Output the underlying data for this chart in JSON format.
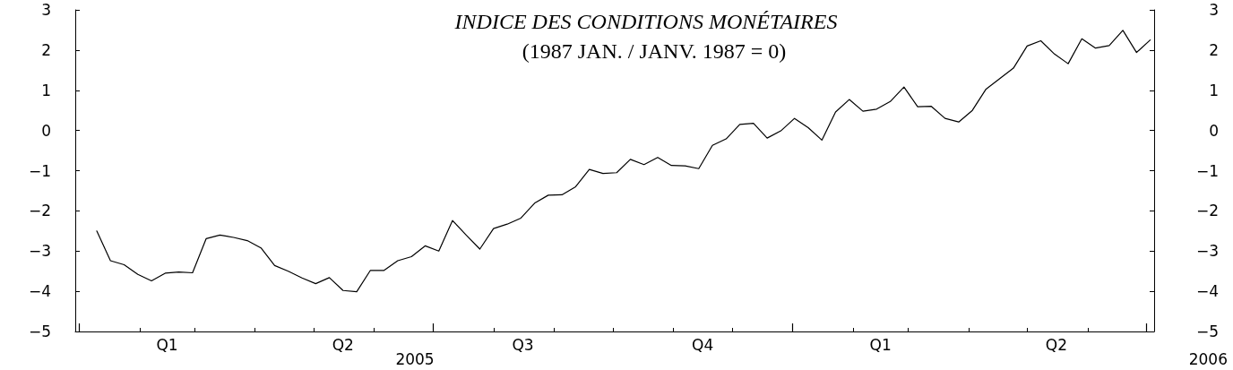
{
  "chart_data": {
    "type": "line",
    "title": "INDICE DES CONDITIONS MONÉTAIRES",
    "subtitle": "(1987 JAN. / JANV. 1987 = 0)",
    "x": [
      "2005-01-10",
      "2005-01-17",
      "2005-01-24",
      "2005-01-31",
      "2005-02-07",
      "2005-02-14",
      "2005-02-21",
      "2005-02-28",
      "2005-03-07",
      "2005-03-14",
      "2005-03-21",
      "2005-03-28",
      "2005-04-04",
      "2005-04-11",
      "2005-04-18",
      "2005-04-25",
      "2005-05-02",
      "2005-05-09",
      "2005-05-16",
      "2005-05-23",
      "2005-05-30",
      "2005-06-06",
      "2005-06-13",
      "2005-06-20",
      "2005-06-27",
      "2005-07-04",
      "2005-07-11",
      "2005-07-18",
      "2005-07-25",
      "2005-08-01",
      "2005-08-08",
      "2005-08-15",
      "2005-08-22",
      "2005-08-29",
      "2005-09-05",
      "2005-09-12",
      "2005-09-19",
      "2005-09-26",
      "2005-10-03",
      "2005-10-10",
      "2005-10-17",
      "2005-10-24",
      "2005-10-31",
      "2005-11-07",
      "2005-11-14",
      "2005-11-21",
      "2005-11-28",
      "2005-12-05",
      "2005-12-12",
      "2005-12-19",
      "2005-12-26",
      "2006-01-02",
      "2006-01-09",
      "2006-01-16",
      "2006-01-23",
      "2006-01-30",
      "2006-02-06",
      "2006-02-13",
      "2006-02-20",
      "2006-02-27",
      "2006-03-06",
      "2006-03-13",
      "2006-03-20",
      "2006-03-27",
      "2006-04-03",
      "2006-04-10",
      "2006-04-17",
      "2006-04-24",
      "2006-05-01",
      "2006-05-08",
      "2006-05-15",
      "2006-05-22",
      "2006-05-29",
      "2006-06-05",
      "2006-06-12",
      "2006-06-19",
      "2006-06-26",
      "2006-07-03"
    ],
    "series": [
      {
        "color": "#000000",
        "values": [
          -2.5,
          -3.24,
          -3.34,
          -3.58,
          -3.74,
          -3.55,
          -3.52,
          -3.54,
          -2.69,
          -2.6,
          -2.66,
          -2.74,
          -2.92,
          -3.36,
          -3.5,
          -3.67,
          -3.81,
          -3.66,
          -3.98,
          -4.01,
          -3.48,
          -3.48,
          -3.24,
          -3.14,
          -2.87,
          -3.0,
          -2.24,
          -2.6,
          -2.95,
          -2.44,
          -2.33,
          -2.18,
          -1.81,
          -1.61,
          -1.6,
          -1.4,
          -0.97,
          -1.07,
          -1.05,
          -0.72,
          -0.85,
          -0.67,
          -0.87,
          -0.88,
          -0.95,
          -0.37,
          -0.21,
          0.15,
          0.18,
          -0.19,
          -0.01,
          0.3,
          0.07,
          -0.24,
          0.46,
          0.77,
          0.48,
          0.53,
          0.72,
          1.08,
          0.59,
          0.6,
          0.3,
          0.21,
          0.5,
          1.03,
          1.29,
          1.55,
          2.1,
          2.23,
          1.9,
          1.66,
          2.28,
          2.05,
          2.11,
          2.49,
          1.94,
          2.25
        ]
      }
    ],
    "xlim": [
      "2004-12-30",
      "2006-07-05"
    ],
    "xticks": [
      {
        "value": "2005-01-01",
        "label": null
      },
      {
        "value": "2005-02-01",
        "label": null
      },
      {
        "value": "2005-02-15",
        "label": "Q1"
      },
      {
        "value": "2005-03-01",
        "label": null
      },
      {
        "value": "2005-04-01",
        "label": null
      },
      {
        "value": "2005-05-01",
        "label": null
      },
      {
        "value": "2005-05-16",
        "label": "Q2"
      },
      {
        "value": "2005-06-01",
        "label": null
      },
      {
        "value": "2005-07-01",
        "label": null
      },
      {
        "value": "2005-08-01",
        "label": null
      },
      {
        "value": "2005-08-16",
        "label": "Q3"
      },
      {
        "value": "2005-09-01",
        "label": null
      },
      {
        "value": "2005-10-01",
        "label": null
      },
      {
        "value": "2005-11-01",
        "label": null
      },
      {
        "value": "2005-11-16",
        "label": "Q4"
      },
      {
        "value": "2005-12-01",
        "label": null
      },
      {
        "value": "2006-01-01",
        "label": null
      },
      {
        "value": "2006-02-01",
        "label": null
      },
      {
        "value": "2006-02-15",
        "label": "Q1"
      },
      {
        "value": "2006-03-01",
        "label": null
      },
      {
        "value": "2006-04-01",
        "label": null
      },
      {
        "value": "2006-05-01",
        "label": null
      },
      {
        "value": "2006-05-16",
        "label": "Q2"
      },
      {
        "value": "2006-06-01",
        "label": null
      },
      {
        "value": "2006-07-01",
        "label": null
      }
    ],
    "ylim": [
      -5,
      3
    ],
    "yticks": [
      -5,
      -4,
      -3,
      -2,
      -1,
      0,
      1,
      2,
      3
    ],
    "y2lim": [
      -5,
      3
    ],
    "y2ticks": [
      -5,
      -4,
      -3,
      -2,
      -1,
      0,
      1,
      2,
      3
    ],
    "marker": "none",
    "line_style": "solid",
    "annotations": [
      "2005",
      "2006"
    ]
  }
}
